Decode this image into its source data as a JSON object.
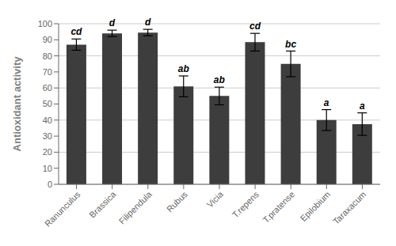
{
  "chart_data": {
    "type": "bar",
    "categories": [
      "Ranunculus",
      "Brassica",
      "Filipendula",
      "Rubus",
      "Vicia",
      "T.repens",
      "T.pratense",
      "Epilobium",
      "Taraxacum"
    ],
    "values": [
      87,
      94,
      94.5,
      61,
      55,
      88.5,
      75,
      40,
      37.5
    ],
    "errors": [
      3.5,
      2.0,
      2.0,
      6.5,
      5.5,
      5.5,
      8.0,
      6.5,
      7.0
    ],
    "labels": [
      "cd",
      "d",
      "d",
      "ab",
      "ab",
      "cd",
      "bc",
      "a",
      "a"
    ],
    "color": "#3d3d3d",
    "ylabel": "Antioxidant activity",
    "ylim": [
      0,
      100
    ],
    "yticks": [
      0,
      10,
      20,
      30,
      40,
      50,
      60,
      70,
      80,
      90,
      100
    ],
    "grid": true
  }
}
